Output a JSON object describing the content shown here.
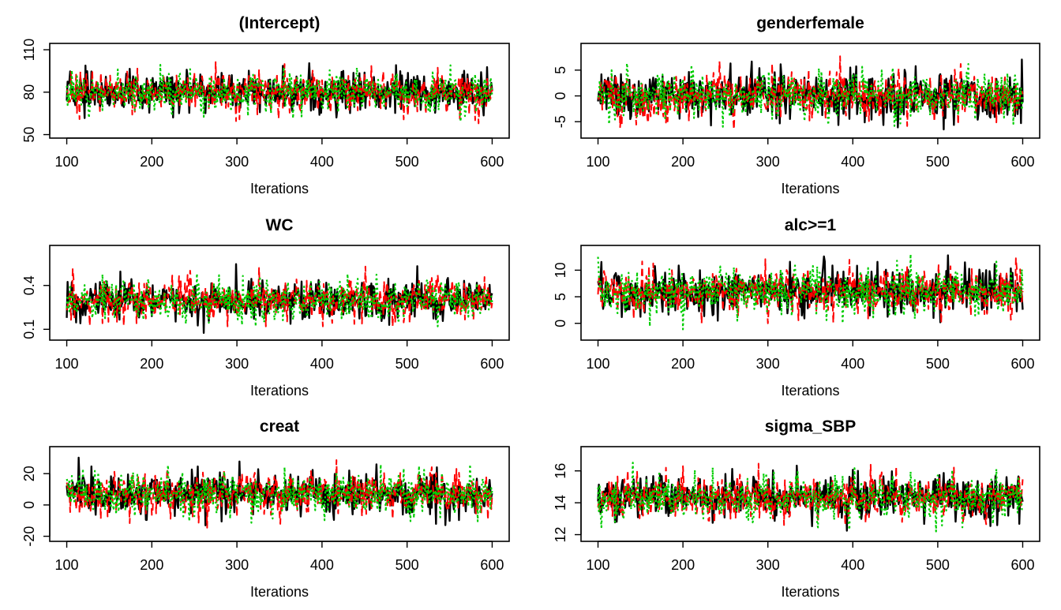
{
  "figure": {
    "background": "#ffffff"
  },
  "chain_colors": [
    "#000000",
    "#ff0000",
    "#00cd00"
  ],
  "chart_data": [
    {
      "type": "line",
      "title": "(Intercept)",
      "xlabel": "Iterations",
      "ylabel": "",
      "xlim": [
        100,
        600
      ],
      "ylim": [
        50,
        112
      ],
      "xticks": [
        100,
        200,
        300,
        400,
        500,
        600
      ],
      "yticks": [
        50,
        80,
        110
      ],
      "grid": false,
      "series": [
        {
          "line_style": "solid",
          "color": "#000000",
          "center": 80,
          "sd": 7,
          "min": 46,
          "max": 114
        },
        {
          "line_style": "dashed",
          "color": "#ff0000",
          "center": 80,
          "sd": 7,
          "min": 55,
          "max": 111
        },
        {
          "line_style": "dotted",
          "color": "#00cd00",
          "center": 80,
          "sd": 7,
          "min": 58,
          "max": 103
        }
      ]
    },
    {
      "type": "line",
      "title": "genderfemale",
      "xlabel": "Iterations",
      "ylabel": "",
      "xlim": [
        100,
        600
      ],
      "ylim": [
        -7.5,
        9.5
      ],
      "xticks": [
        100,
        200,
        300,
        400,
        500,
        600
      ],
      "yticks": [
        -5,
        0,
        5
      ],
      "grid": false,
      "series": [
        {
          "line_style": "solid",
          "color": "#000000",
          "center": 0,
          "sd": 2.3,
          "min": -6.5,
          "max": 7.5
        },
        {
          "line_style": "dashed",
          "color": "#ff0000",
          "center": 0,
          "sd": 2.3,
          "min": -6.5,
          "max": 9.5
        },
        {
          "line_style": "dotted",
          "color": "#00cd00",
          "center": 0,
          "sd": 2.3,
          "min": -6,
          "max": 8
        }
      ]
    },
    {
      "type": "line",
      "title": "WC",
      "xlabel": "Iterations",
      "ylabel": "",
      "xlim": [
        100,
        600
      ],
      "ylim": [
        0.05,
        0.65
      ],
      "xticks": [
        100,
        200,
        300,
        400,
        500,
        600
      ],
      "yticks": [
        0.1,
        0.4
      ],
      "grid": false,
      "series": [
        {
          "line_style": "solid",
          "color": "#000000",
          "center": 0.3,
          "sd": 0.07,
          "min": 0.05,
          "max": 0.56
        },
        {
          "line_style": "dashed",
          "color": "#ff0000",
          "center": 0.3,
          "sd": 0.07,
          "min": 0.12,
          "max": 0.63
        },
        {
          "line_style": "dotted",
          "color": "#00cd00",
          "center": 0.3,
          "sd": 0.07,
          "min": 0.12,
          "max": 0.5
        }
      ]
    },
    {
      "type": "line",
      "title": "alc>=1",
      "xlabel": "Iterations",
      "ylabel": "",
      "xlim": [
        100,
        600
      ],
      "ylim": [
        -2.5,
        14
      ],
      "xticks": [
        100,
        200,
        300,
        400,
        500,
        600
      ],
      "yticks": [
        0,
        5,
        10
      ],
      "grid": false,
      "series": [
        {
          "line_style": "solid",
          "color": "#000000",
          "center": 6,
          "sd": 2.2,
          "min": -2.3,
          "max": 12.8
        },
        {
          "line_style": "dashed",
          "color": "#ff0000",
          "center": 6,
          "sd": 2.2,
          "min": 0,
          "max": 13.8
        },
        {
          "line_style": "dotted",
          "color": "#00cd00",
          "center": 6,
          "sd": 2.2,
          "min": -2,
          "max": 13
        }
      ]
    },
    {
      "type": "line",
      "title": "creat",
      "xlabel": "Iterations",
      "ylabel": "",
      "xlim": [
        100,
        600
      ],
      "ylim": [
        -21,
        35
      ],
      "xticks": [
        100,
        200,
        300,
        400,
        500,
        600
      ],
      "yticks": [
        -20,
        0,
        20
      ],
      "grid": false,
      "series": [
        {
          "line_style": "solid",
          "color": "#000000",
          "center": 7,
          "sd": 6.5,
          "min": -13,
          "max": 34
        },
        {
          "line_style": "dashed",
          "color": "#ff0000",
          "center": 7,
          "sd": 6.5,
          "min": -15,
          "max": 30
        },
        {
          "line_style": "dotted",
          "color": "#00cd00",
          "center": 7,
          "sd": 6.5,
          "min": -20,
          "max": 31
        }
      ]
    },
    {
      "type": "line",
      "title": "sigma_SBP",
      "xlabel": "Iterations",
      "ylabel": "",
      "xlim": [
        100,
        600
      ],
      "ylim": [
        11.8,
        17.3
      ],
      "xticks": [
        100,
        200,
        300,
        400,
        500,
        600
      ],
      "yticks": [
        12,
        14,
        16
      ],
      "grid": false,
      "series": [
        {
          "line_style": "solid",
          "color": "#000000",
          "center": 14.3,
          "sd": 0.7,
          "min": 11.9,
          "max": 17.2
        },
        {
          "line_style": "dashed",
          "color": "#ff0000",
          "center": 14.3,
          "sd": 0.7,
          "min": 12.6,
          "max": 17.2
        },
        {
          "line_style": "dotted",
          "color": "#00cd00",
          "center": 14.3,
          "sd": 0.7,
          "min": 12.2,
          "max": 16.6
        }
      ]
    }
  ]
}
